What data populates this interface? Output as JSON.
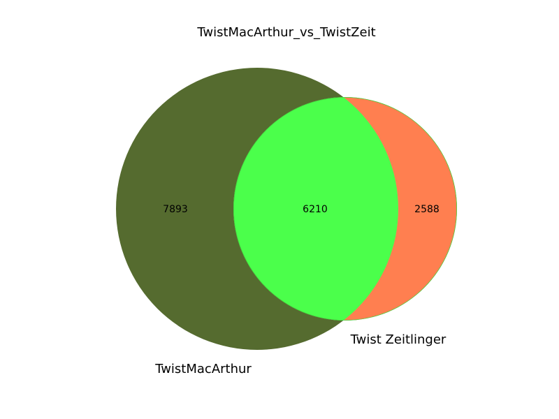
{
  "chart_data": {
    "type": "venn",
    "title": "TwistMacArthur_vs_TwistZeit",
    "sets": [
      {
        "name": "TwistMacArthur",
        "only_count": "7893",
        "color": "#556b2f"
      },
      {
        "name": "Twist Zeitlinger",
        "only_count": "2588",
        "color": "#ff7f50"
      }
    ],
    "intersection": {
      "count": "6210",
      "color": "#4bff4b"
    }
  }
}
